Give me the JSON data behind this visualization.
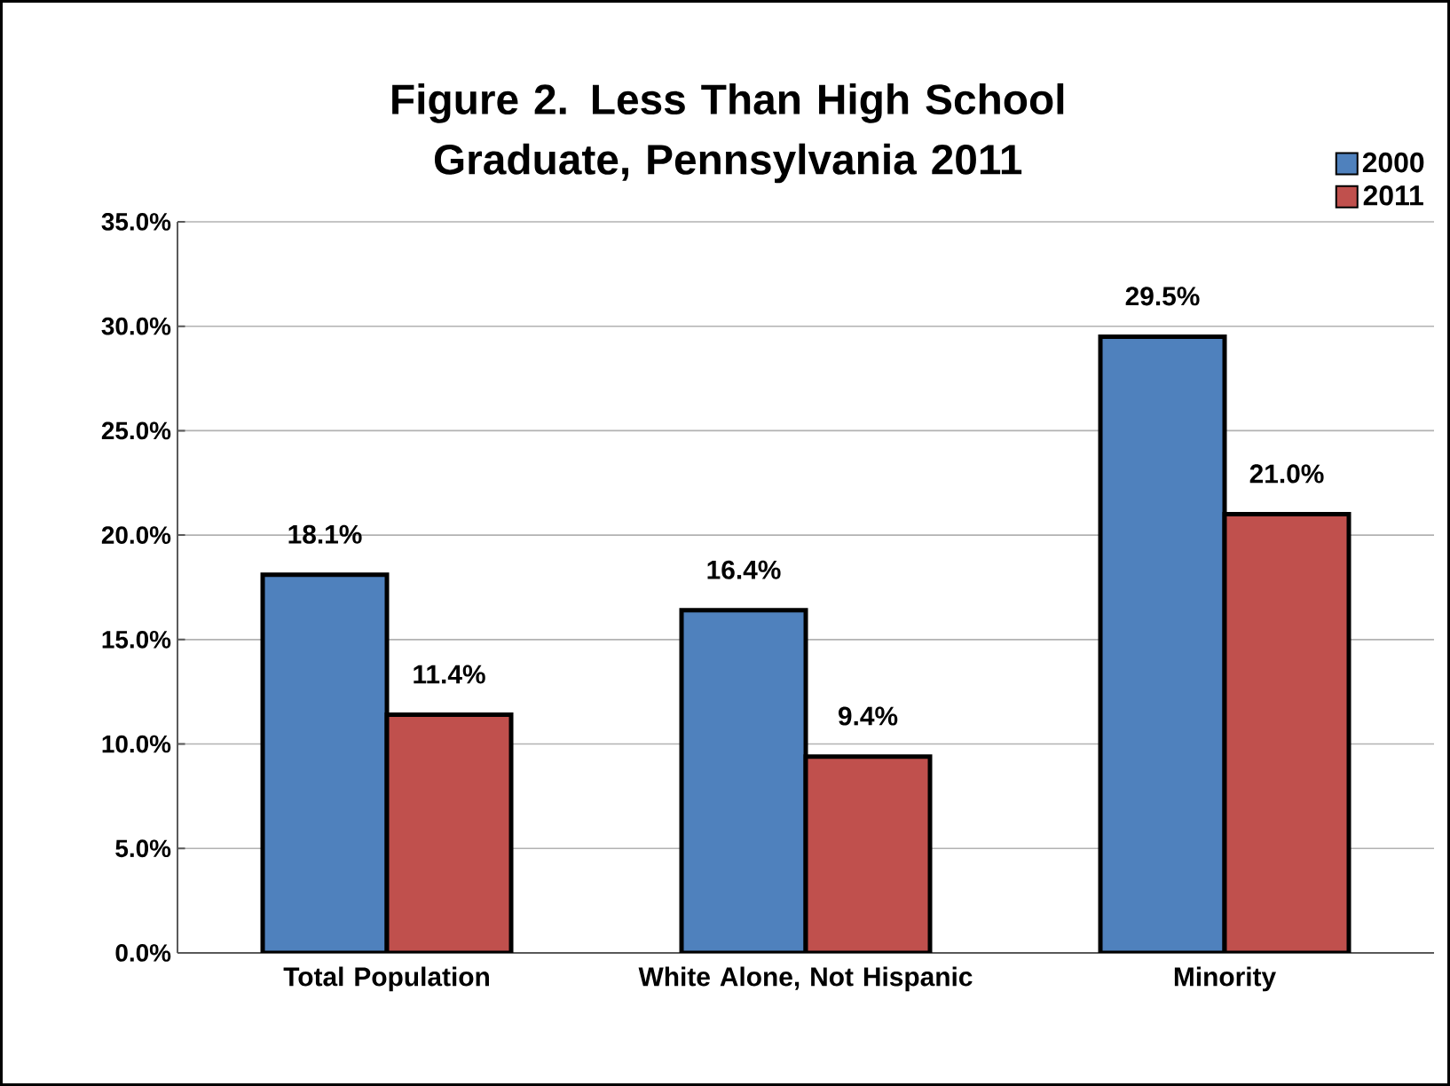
{
  "chart_data": {
    "type": "bar",
    "title": "Figure 2. Less Than High School Graduate, Pennsylvania 2011",
    "categories": [
      "Total Population",
      "White Alone, Not Hispanic",
      "Minority"
    ],
    "series": [
      {
        "name": "2000",
        "color": "#4f81bd",
        "values": [
          18.1,
          16.4,
          29.5
        ],
        "value_labels": [
          "18.1%",
          "16.4%",
          "29.5%"
        ]
      },
      {
        "name": "2011",
        "color": "#c0504d",
        "values": [
          11.4,
          9.4,
          21.0
        ],
        "value_labels": [
          "11.4%",
          "9.4%",
          "21.0%"
        ]
      }
    ],
    "ylim": [
      0,
      35
    ],
    "yticks": [
      {
        "value": 0,
        "label": "0.0%"
      },
      {
        "value": 5,
        "label": "5.0%"
      },
      {
        "value": 10,
        "label": "10.0%"
      },
      {
        "value": 15,
        "label": "15.0%"
      },
      {
        "value": 20,
        "label": "20.0%"
      },
      {
        "value": 25,
        "label": "25.0%"
      },
      {
        "value": 30,
        "label": "30.0%"
      },
      {
        "value": 35,
        "label": "35.0%"
      }
    ],
    "grid": "y",
    "legend": "top right"
  }
}
